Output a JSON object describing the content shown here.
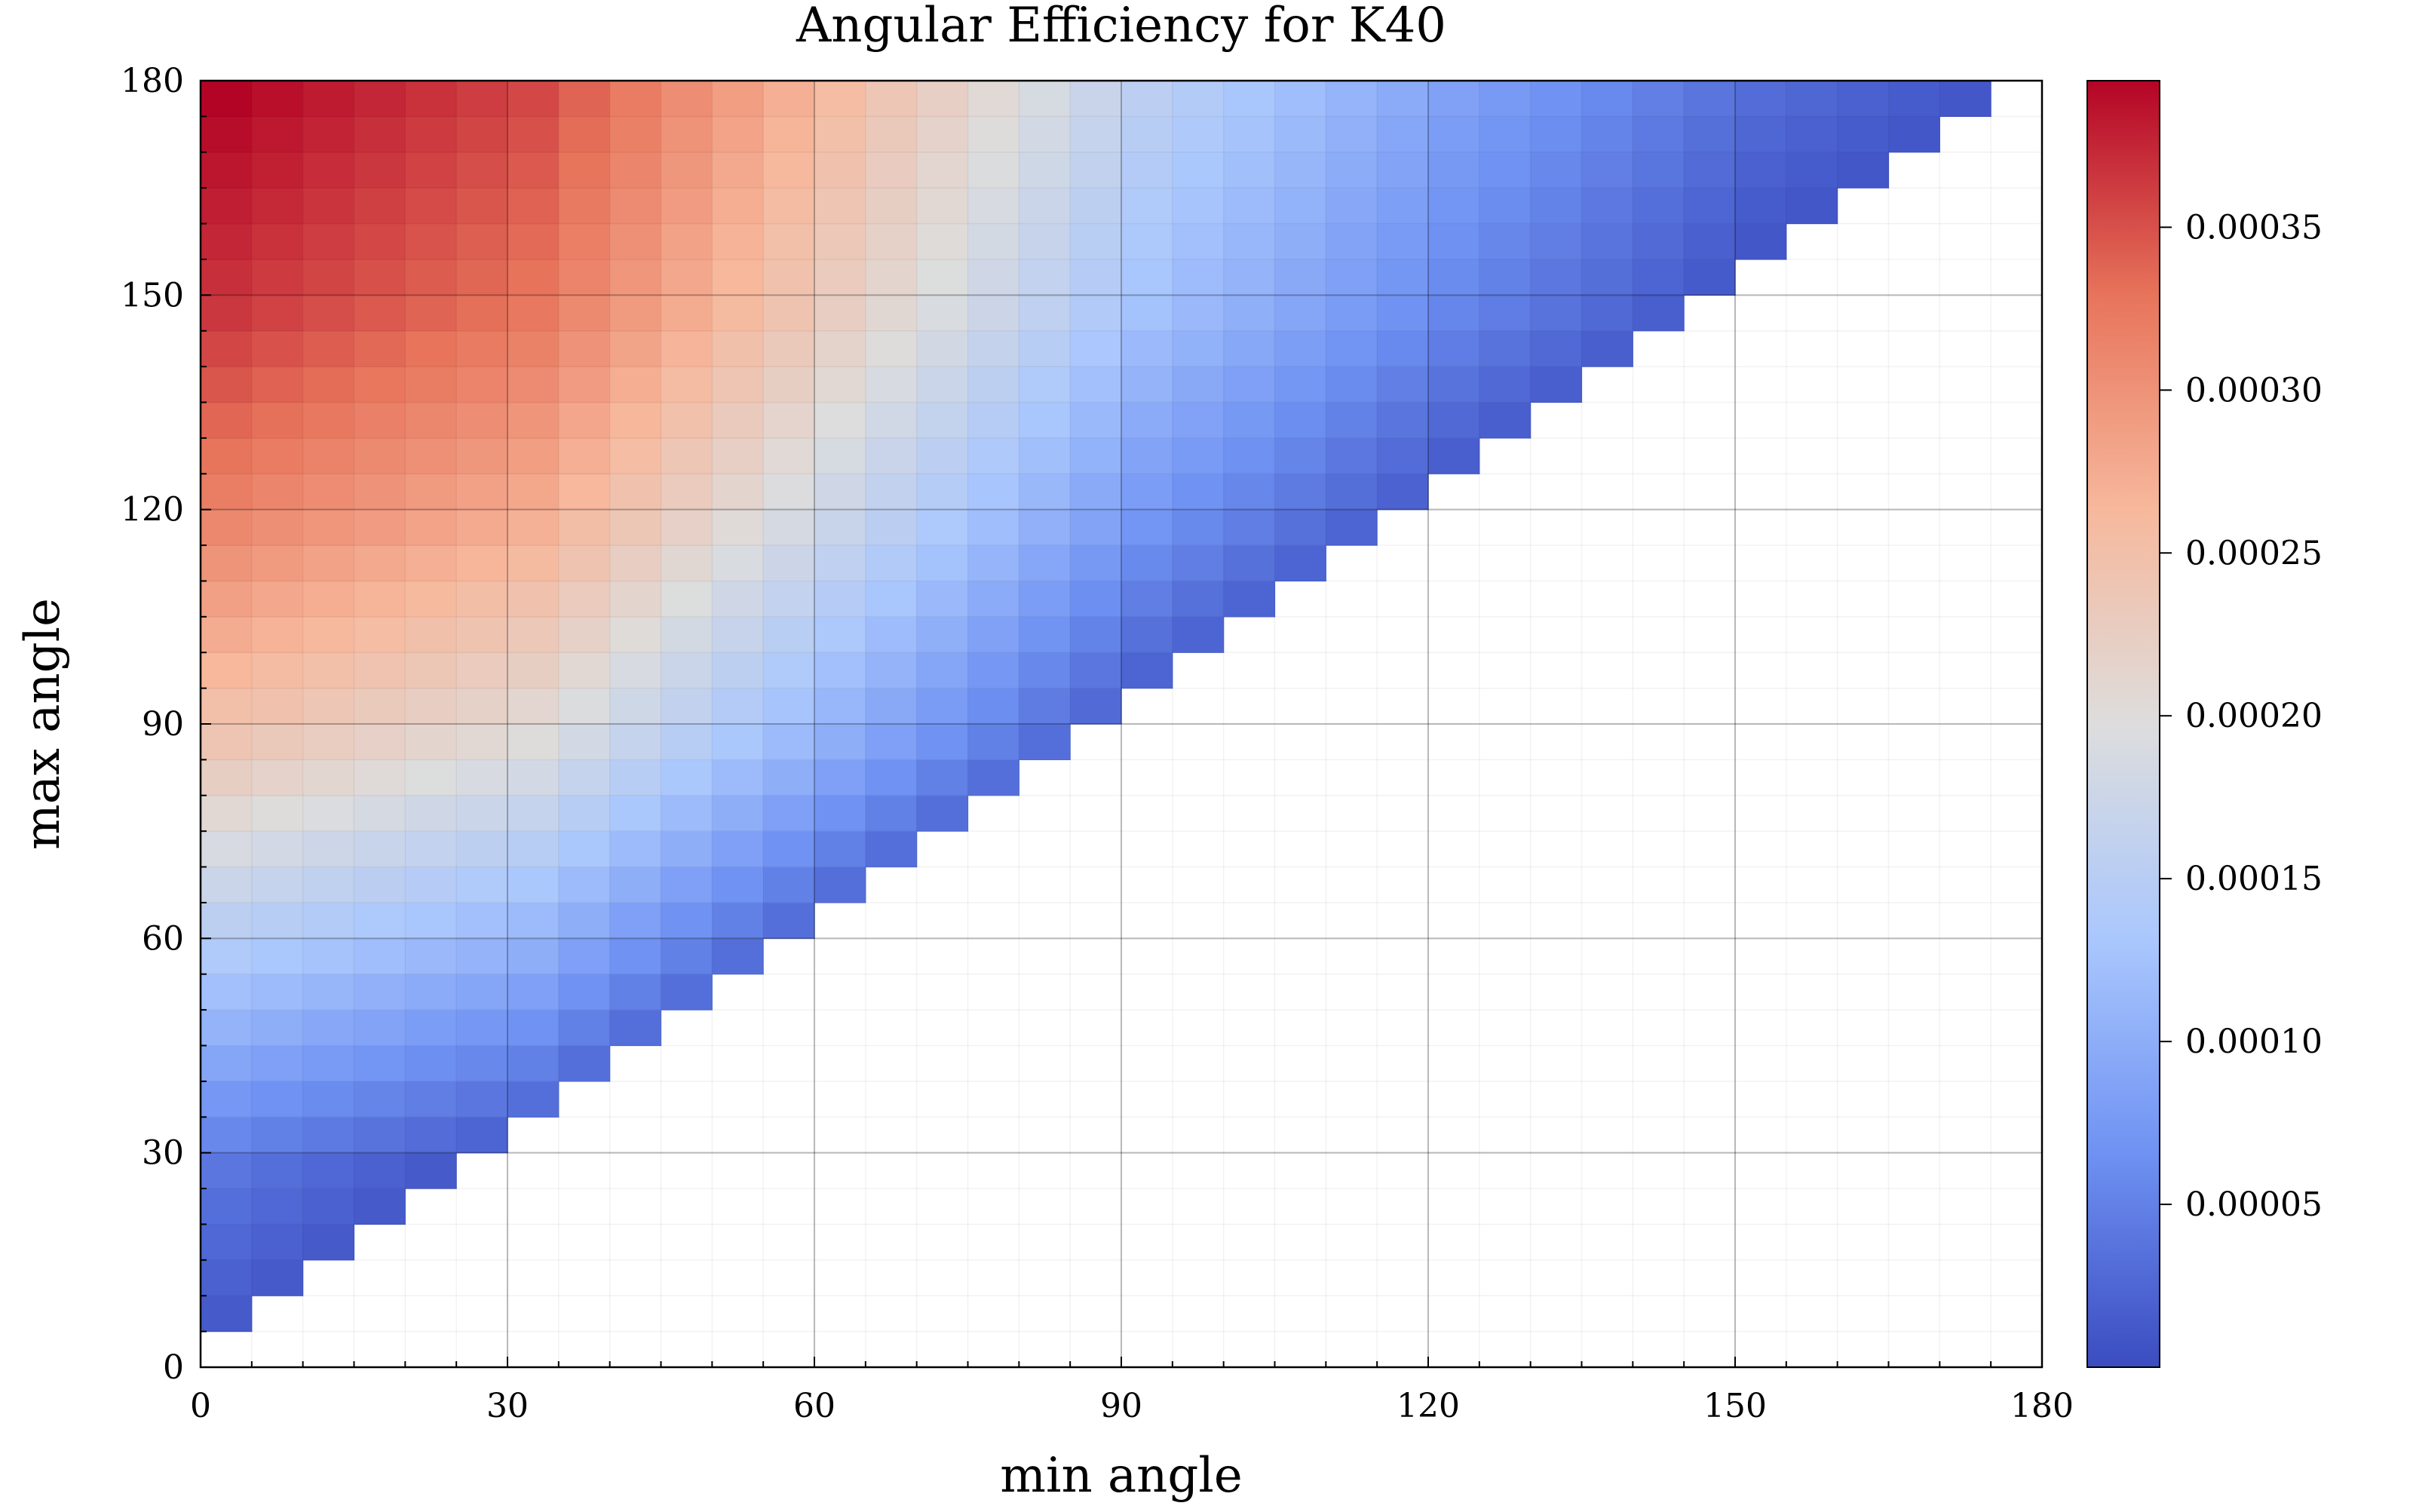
{
  "chart_data": {
    "type": "heatmap",
    "title": "Angular Efficiency for K40",
    "xlabel": "min angle",
    "ylabel": "max angle",
    "xlim": [
      0,
      180
    ],
    "ylim": [
      0,
      180
    ],
    "x_ticks": [
      "0",
      "30",
      "60",
      "90",
      "120",
      "150",
      "180"
    ],
    "y_ticks": [
      "0",
      "30",
      "60",
      "90",
      "120",
      "150",
      "180"
    ],
    "bin_width": 5,
    "cell_rule": "cell value = efficiency(max angle) - efficiency(min angle); defined only where max angle > min angle",
    "efficiency_profile": {
      "angle": [
        0,
        30,
        60,
        90,
        120,
        150,
        180
      ],
      "efficiency": [
        0,
        4e-05,
        0.00014,
        0.00024,
        0.00031,
        0.000365,
        0.000395
      ]
    },
    "colorbar": {
      "min": 0,
      "max": 0.000395,
      "ticks": [
        "0.00005",
        "0.00010",
        "0.00015",
        "0.00020",
        "0.00025",
        "0.00030",
        "0.00035"
      ],
      "colormap": [
        "#3b4cc0",
        "#6f92f3",
        "#aac7fd",
        "#dddddd",
        "#f7b89c",
        "#e7745b",
        "#b40426"
      ]
    },
    "grid": true
  }
}
